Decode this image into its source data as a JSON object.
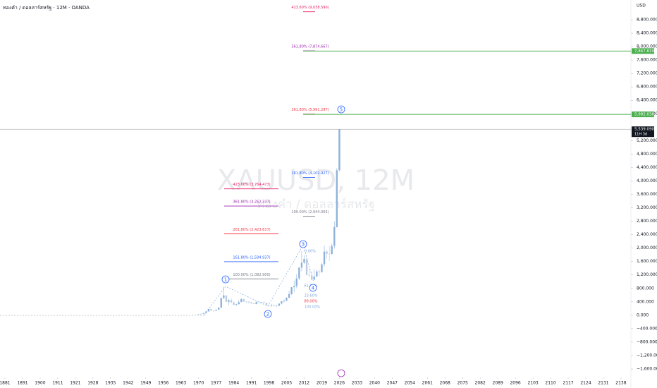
{
  "chart_data": {
    "type": "candlestick",
    "title": "ทองคำ / ดอลลาร์สหรัฐ · 12M · OANDA",
    "watermark": "XAUUSD, 12M",
    "watermark_sub": "ทองคำ / ดอลลาร์สหรัฐ",
    "currency": "USD",
    "x": [
      1970,
      1971,
      1972,
      1973,
      1974,
      1975,
      1976,
      1977,
      1978,
      1979,
      1980,
      1981,
      1982,
      1983,
      1984,
      1985,
      1986,
      1987,
      1988,
      1989,
      1990,
      1991,
      1992,
      1993,
      1994,
      1995,
      1996,
      1997,
      1998,
      1999,
      2000,
      2001,
      2002,
      2003,
      2004,
      2005,
      2006,
      2007,
      2008,
      2009,
      2010,
      2011,
      2012,
      2013,
      2014,
      2015,
      2016,
      2017,
      2018,
      2019,
      2020,
      2021,
      2022,
      2023,
      2024,
      2025,
      2026
    ],
    "open": [
      35,
      37,
      43,
      64,
      112,
      187,
      140,
      135,
      165,
      226,
      512,
      590,
      400,
      447,
      380,
      308,
      327,
      390,
      484,
      410,
      401,
      386,
      353,
      333,
      391,
      383,
      387,
      369,
      290,
      288,
      290,
      272,
      279,
      347,
      416,
      438,
      517,
      632,
      834,
      870,
      1097,
      1420,
      1565,
      1675,
      1202,
      1184,
      1061,
      1152,
      1303,
      1282,
      1517,
      1898,
      1829,
      1824,
      2063,
      2625,
      4320
    ],
    "high": [
      39,
      44,
      70,
      127,
      197,
      187,
      141,
      168,
      245,
      524,
      850,
      599,
      488,
      512,
      406,
      341,
      443,
      500,
      485,
      418,
      424,
      405,
      360,
      407,
      397,
      396,
      416,
      369,
      314,
      339,
      316,
      293,
      350,
      417,
      457,
      538,
      730,
      845,
      1033,
      1227,
      1431,
      1920,
      1796,
      1696,
      1392,
      1307,
      1375,
      1357,
      1366,
      1557,
      2075,
      1959,
      2070,
      2135,
      2790,
      4381,
      5539
    ],
    "low": [
      35,
      37,
      43,
      64,
      112,
      128,
      103,
      130,
      165,
      216,
      474,
      391,
      297,
      374,
      303,
      284,
      326,
      390,
      395,
      356,
      345,
      344,
      329,
      326,
      370,
      372,
      367,
      283,
      273,
      252,
      263,
      255,
      277,
      319,
      374,
      411,
      517,
      603,
      681,
      802,
      1044,
      1308,
      1527,
      1180,
      1132,
      1046,
      1061,
      1147,
      1160,
      1266,
      1451,
      1677,
      1614,
      1804,
      1984,
      2615,
      4280
    ],
    "close": [
      37,
      43,
      64,
      112,
      187,
      140,
      135,
      165,
      226,
      512,
      590,
      400,
      447,
      380,
      308,
      327,
      390,
      484,
      410,
      401,
      386,
      353,
      333,
      391,
      383,
      387,
      369,
      290,
      288,
      290,
      272,
      279,
      347,
      416,
      438,
      517,
      632,
      834,
      870,
      1097,
      1420,
      1565,
      1675,
      1202,
      1184,
      1061,
      1152,
      1303,
      1282,
      1517,
      1898,
      1829,
      1824,
      2063,
      2625,
      4320,
      5539
    ],
    "up_color": "#8fb2db",
    "down_color": "#bccbe0",
    "xticks": [
      1881,
      1891,
      1900,
      1911,
      1921,
      1928,
      1935,
      1942,
      1949,
      1956,
      1963,
      1970,
      1977,
      1984,
      1991,
      1998,
      2005,
      2012,
      2019,
      2026,
      2033,
      2040,
      2047,
      2054,
      2061,
      2068,
      2075,
      2082,
      2089,
      2096,
      2103,
      2110,
      2117,
      2124,
      2131,
      2138
    ],
    "ylim": [
      -1700,
      9600
    ],
    "yticks": [
      {
        "value": 8800,
        "label": "8,800.000"
      },
      {
        "value": 8400,
        "label": "8,400.000"
      },
      {
        "value": 8000,
        "label": "8,000.000"
      },
      {
        "value": 7600,
        "label": "7,600.000"
      },
      {
        "value": 7200,
        "label": "7,200.000"
      },
      {
        "value": 6800,
        "label": "6,800.000"
      },
      {
        "value": 6400,
        "label": "6,400.000"
      },
      {
        "value": 6000,
        "label": "6,000.000"
      },
      {
        "value": 5200,
        "label": "5,200.000"
      },
      {
        "value": 4800,
        "label": "4,800.000"
      },
      {
        "value": 4400,
        "label": "4,400.000"
      },
      {
        "value": 4000,
        "label": "4,000.000"
      },
      {
        "value": 3600,
        "label": "3,600.000"
      },
      {
        "value": 3200,
        "label": "3,200.000"
      },
      {
        "value": 2800,
        "label": "2,800.000"
      },
      {
        "value": 2400,
        "label": "2,400.000"
      },
      {
        "value": 2000,
        "label": "2,000.000"
      },
      {
        "value": 1600,
        "label": "1,600.000"
      },
      {
        "value": 1200,
        "label": "1,200.000"
      },
      {
        "value": 800,
        "label": "800.000"
      },
      {
        "value": 400,
        "label": "400.000"
      },
      {
        "value": 0,
        "label": "0.000"
      },
      {
        "value": -400,
        "label": "−400.000"
      },
      {
        "value": -800,
        "label": "−800.000"
      },
      {
        "value": -1200,
        "label": "−1,200.000"
      },
      {
        "value": -1600,
        "label": "−1,600.000"
      }
    ],
    "fibonacci": [
      {
        "label": "423.60% (3,764.473)",
        "value": 3764.473,
        "color": "#e91e63"
      },
      {
        "label": "361.80% (3,252.337)",
        "value": 3252.337,
        "color": "#9c27b0"
      },
      {
        "label": "261.80% (2,423.637)",
        "value": 2423.637,
        "color": "#f23645"
      },
      {
        "label": "161.80% (1,594.937)",
        "value": 1594.937,
        "color": "#2962ff"
      },
      {
        "label": "100.00% (1,082.900)",
        "value": 1082.9,
        "color": "#787b86"
      },
      {
        "label": "161.80% (4,102.927)",
        "value": 4102.927,
        "color": "#2962ff"
      },
      {
        "label": "100.00% (2,944.005)",
        "value": 2944.005,
        "color": "#787b86"
      },
      {
        "label": "423.60% (9,038.590)",
        "value": 9038.59,
        "color": "#e91e63"
      },
      {
        "label": "361.80% (7,874.667)",
        "value": 7874.667,
        "color": "#9c27b0"
      },
      {
        "label": "261.80% (5,991.297)",
        "value": 5991.297,
        "color": "#f23645"
      }
    ],
    "retracement_labels": [
      "0.00%",
      "61.80%",
      "23.60%",
      "89.00%",
      "100.00%"
    ],
    "waves": [
      "1",
      "2",
      "3",
      "4",
      "5"
    ],
    "price_lines": [
      {
        "label": "7,867.819",
        "value": 7867.819,
        "color": "#4caf50"
      },
      {
        "label": "5,982.038",
        "value": 5982.038,
        "color": "#4caf50"
      }
    ],
    "last_price": {
      "label": "5,539.090",
      "value": 5539.09,
      "countdown": "11H 3d"
    }
  }
}
